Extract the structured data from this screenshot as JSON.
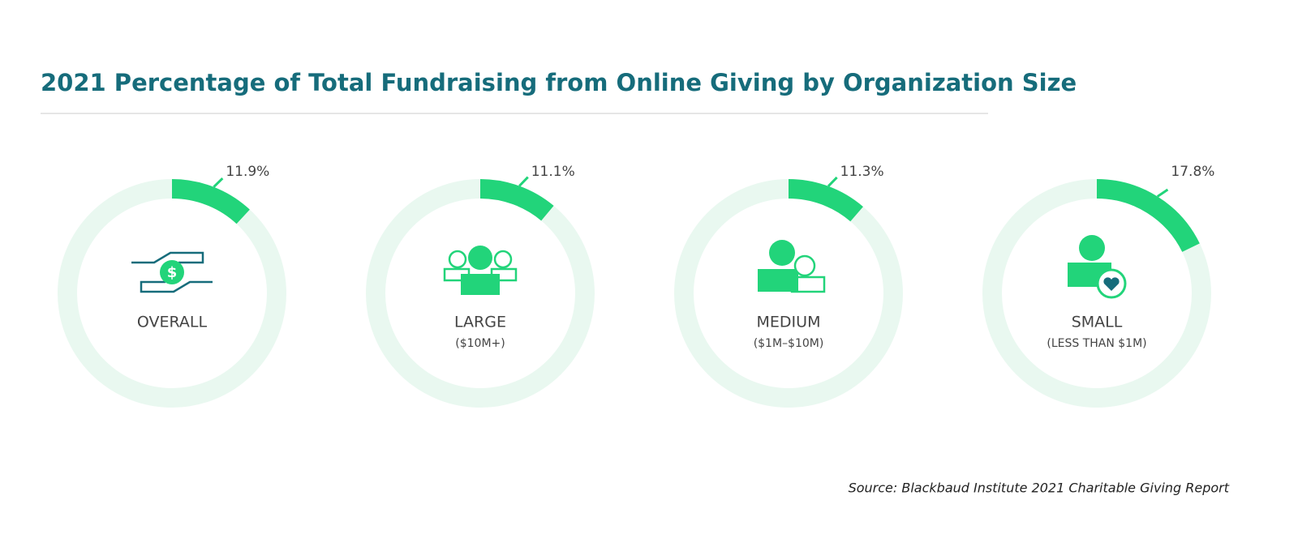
{
  "chart_data": {
    "type": "gauge",
    "title": "2021 Percentage of Total Fundraising from Online Giving by Organization Size",
    "categories": [
      "OVERALL",
      "LARGE",
      "MEDIUM",
      "SMALL"
    ],
    "subcategories": [
      null,
      "($10M+)",
      "($1M–$10M)",
      "(LESS THAN $1M)"
    ],
    "values": [
      11.9,
      11.1,
      11.3,
      17.8
    ],
    "value_labels": [
      "11.9%",
      "11.1%",
      "11.3%",
      "17.8%"
    ],
    "ylim": [
      0,
      100
    ],
    "color": "#22d47a",
    "track_color": "#e9f8f0",
    "source": "Source: Blackbaud Institute 2021 Charitable Giving Report"
  }
}
